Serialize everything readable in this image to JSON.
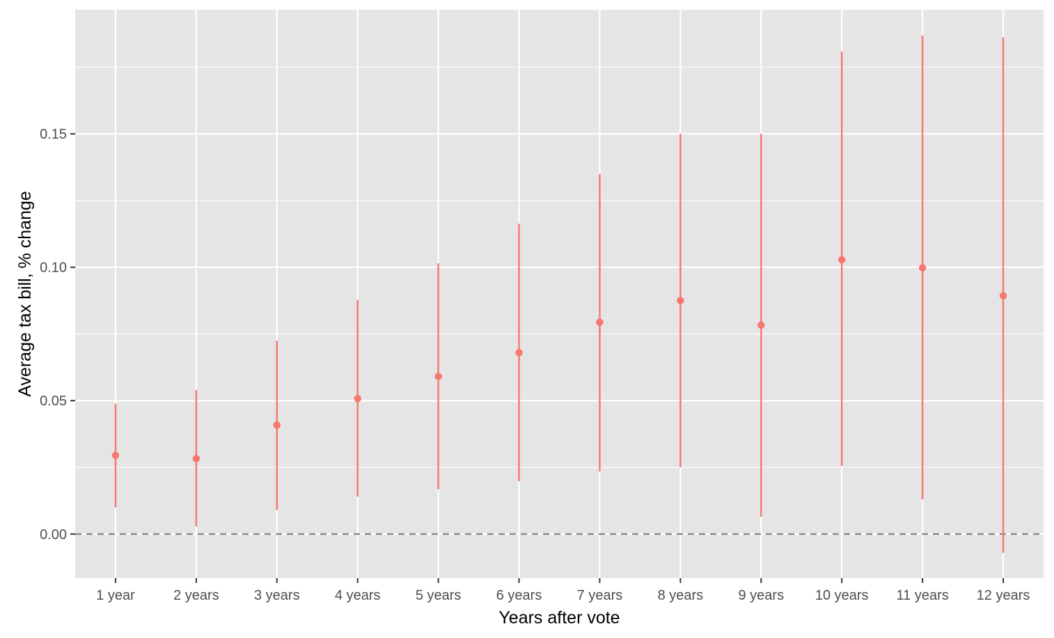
{
  "chart_data": {
    "type": "errorbar",
    "title": "",
    "xlabel": "Years after vote",
    "ylabel": "Average tax bill, % change",
    "categories": [
      "1 year",
      "2 years",
      "3 years",
      "4 years",
      "5 years",
      "6 years",
      "7 years",
      "8 years",
      "9 years",
      "10 years",
      "11 years",
      "12 years"
    ],
    "estimate": [
      0.0295,
      0.0283,
      0.0408,
      0.0508,
      0.0591,
      0.068,
      0.0794,
      0.0875,
      0.0783,
      0.1028,
      0.0998,
      0.0893
    ],
    "lower": [
      0.01,
      0.0028,
      0.009,
      0.014,
      0.0168,
      0.0198,
      0.0235,
      0.025,
      0.0065,
      0.0255,
      0.013,
      -0.007
    ],
    "upper": [
      0.0488,
      0.054,
      0.0725,
      0.0878,
      0.1015,
      0.1163,
      0.135,
      0.15,
      0.15,
      0.1808,
      0.1868,
      0.1862
    ],
    "ylim": [
      -0.0165,
      0.1965
    ],
    "yticks": [
      0.0,
      0.05,
      0.1,
      0.15
    ],
    "ytick_labels": [
      "0.00",
      "0.05",
      "0.10",
      "0.15"
    ],
    "reference_line": 0,
    "grid": true,
    "legend": "none",
    "colors": {
      "panel": "#e5e5e5",
      "grid": "#ffffff",
      "series": "#f8766d",
      "reference": "#7f7f7f"
    }
  }
}
